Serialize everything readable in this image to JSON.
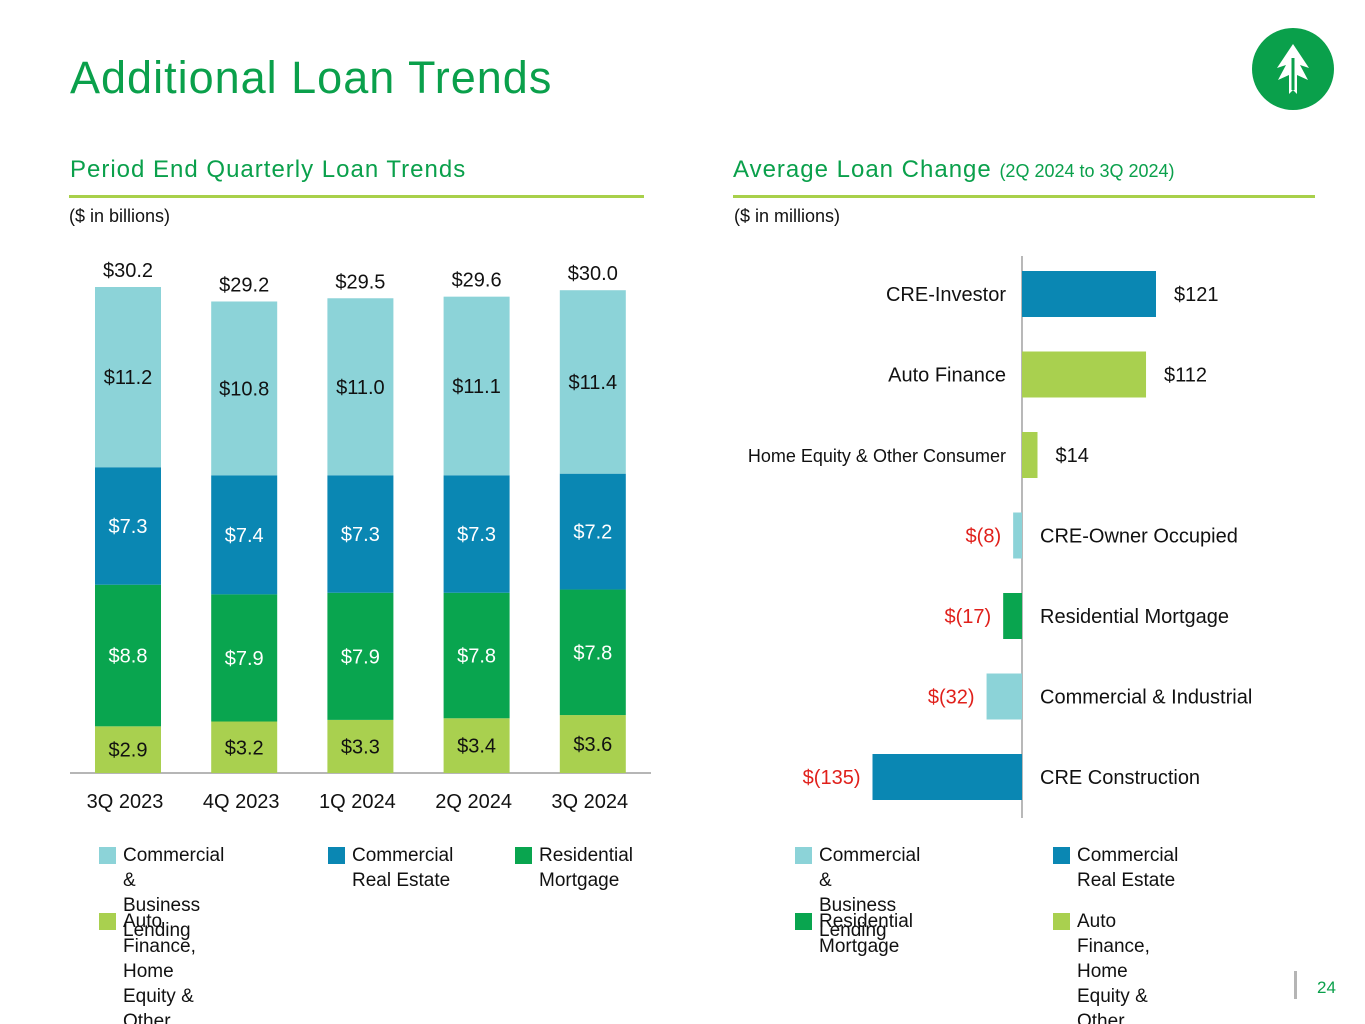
{
  "page": {
    "title": "Additional Loan Trends",
    "page_number": "24"
  },
  "left_section": {
    "title": "Period End Quarterly Loan Trends",
    "units": "($ in billions)"
  },
  "right_section": {
    "title": "Average Loan Change",
    "subtitle": "(2Q 2024 to 3Q 2024)",
    "units": "($ in millions)"
  },
  "colors": {
    "commercial_business": "#8cd3d8",
    "commercial_real_estate": "#0a87b3",
    "residential_mortgage": "#09a54f",
    "auto_consumer": "#a9d04f",
    "negative_label": "#e0201b",
    "brand_green": "#0aa04b"
  },
  "chart_data": [
    {
      "type": "bar",
      "stacked": true,
      "title": "Period End Quarterly Loan Trends",
      "units": "$ in billions",
      "categories": [
        "3Q 2023",
        "4Q 2023",
        "1Q 2024",
        "2Q 2024",
        "3Q 2024"
      ],
      "series": [
        {
          "name": "Auto Finance, Home Equity & Other Consumer",
          "color_key": "auto_consumer",
          "values": [
            2.9,
            3.2,
            3.3,
            3.4,
            3.6
          ],
          "labels": [
            "$2.9",
            "$3.2",
            "$3.3",
            "$3.4",
            "$3.6"
          ],
          "label_color": "#111111"
        },
        {
          "name": "Residential Mortgage",
          "color_key": "residential_mortgage",
          "values": [
            8.8,
            7.9,
            7.9,
            7.8,
            7.8
          ],
          "labels": [
            "$8.8",
            "$7.9",
            "$7.9",
            "$7.8",
            "$7.8"
          ],
          "label_color": "#ffffff"
        },
        {
          "name": "Commercial Real Estate",
          "color_key": "commercial_real_estate",
          "values": [
            7.3,
            7.4,
            7.3,
            7.3,
            7.2
          ],
          "labels": [
            "$7.3",
            "$7.4",
            "$7.3",
            "$7.3",
            "$7.2"
          ],
          "label_color": "#ffffff"
        },
        {
          "name": "Commercial & Business Lending",
          "color_key": "commercial_business",
          "values": [
            11.2,
            10.8,
            11.0,
            11.1,
            11.4
          ],
          "labels": [
            "$11.2",
            "$10.8",
            "$11.0",
            "$11.1",
            "$11.4"
          ],
          "label_color": "#111111"
        }
      ],
      "totals": [
        30.2,
        29.2,
        29.5,
        29.6,
        30.0
      ],
      "total_labels": [
        "$30.2",
        "$29.2",
        "$29.5",
        "$29.6",
        "$30.0"
      ],
      "ylim": [
        0,
        30.2
      ]
    },
    {
      "type": "bar",
      "orientation": "horizontal",
      "title": "Average Loan Change (2Q 2024 to 3Q 2024)",
      "units": "$ in millions",
      "categories": [
        "CRE-Investor",
        "Auto Finance",
        "Home Equity & Other Consumer",
        "CRE-Owner Occupied",
        "Residential Mortgage",
        "Commercial & Industrial",
        "CRE Construction"
      ],
      "values": [
        121,
        112,
        14,
        -8,
        -17,
        -32,
        -135
      ],
      "labels": [
        "$121",
        "$112",
        "$14",
        "$(8)",
        "$(17)",
        "$(32)",
        "$(135)"
      ],
      "color_keys": [
        "commercial_real_estate",
        "auto_consumer",
        "auto_consumer",
        "commercial_business",
        "residential_mortgage",
        "commercial_business",
        "commercial_real_estate"
      ]
    }
  ],
  "left_legend": [
    {
      "label": "Commercial &\nBusiness Lending",
      "color_key": "commercial_business"
    },
    {
      "label": "Commercial\nReal Estate",
      "color_key": "commercial_real_estate"
    },
    {
      "label": "Residential\nMortgage",
      "color_key": "residential_mortgage"
    },
    {
      "label": "Auto Finance,\nHome Equity &\nOther Consumer",
      "color_key": "auto_consumer"
    }
  ],
  "right_legend": [
    {
      "label": "Commercial &\nBusiness Lending",
      "color_key": "commercial_business"
    },
    {
      "label": "Commercial\nReal Estate",
      "color_key": "commercial_real_estate"
    },
    {
      "label": "Residential\nMortgage",
      "color_key": "residential_mortgage"
    },
    {
      "label": "Auto Finance, Home\nEquity & Other\nConsumer",
      "color_key": "auto_consumer"
    }
  ]
}
